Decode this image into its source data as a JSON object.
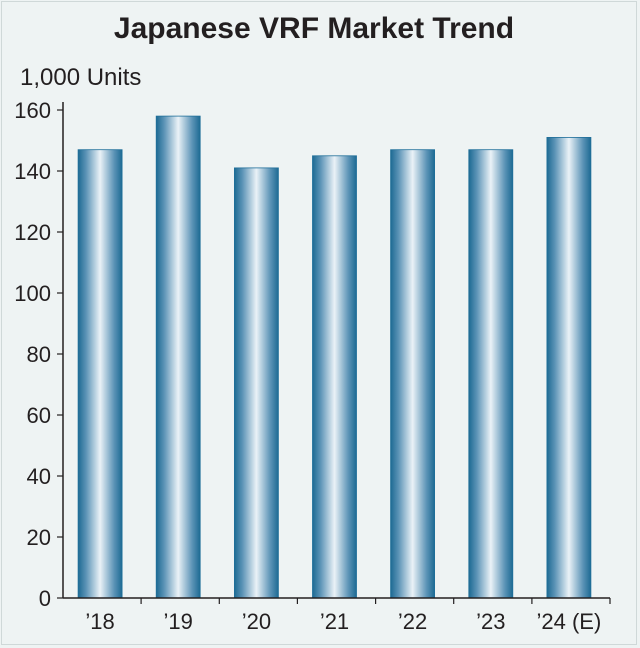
{
  "chart_data": {
    "type": "bar",
    "title": "Japanese VRF Market Trend",
    "ylabel": "1,000 Units",
    "xlabel": "",
    "categories": [
      "’18",
      "’19",
      "’20",
      "’21",
      "’22",
      "’23",
      "’24 (E)"
    ],
    "values": [
      147,
      158,
      141,
      145,
      147,
      147,
      151
    ],
    "ylim": [
      0,
      160
    ],
    "yticks": [
      0,
      20,
      40,
      60,
      80,
      100,
      120,
      140,
      160
    ],
    "grid": false,
    "legend": "none"
  },
  "colors": {
    "bar_edge": "#1f6f99",
    "bar_highlight": "#eef4f8",
    "axis": "#231f20",
    "background": "#eef3f3"
  }
}
